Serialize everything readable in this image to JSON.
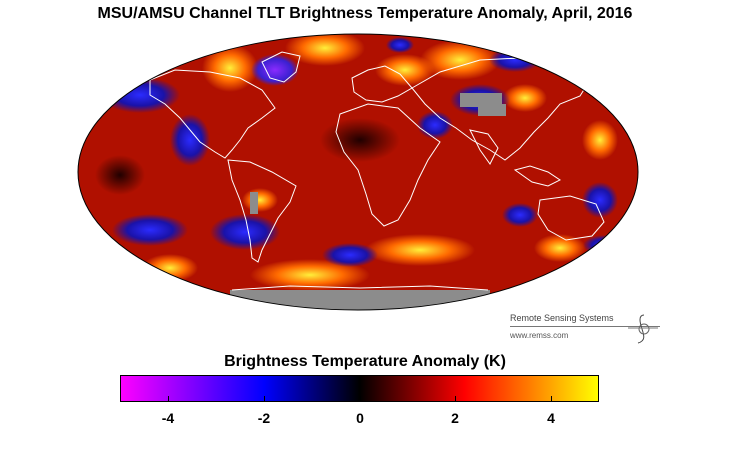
{
  "title": "MSU/AMSU Channel TLT Brightness Temperature Anomaly, April, 2016",
  "credit": {
    "org": "Remote Sensing Systems",
    "url": "www.remss.com",
    "logo_icon": "rss-logo-icon"
  },
  "legend": {
    "title": "Brightness Temperature Anomaly (K)",
    "units": "K",
    "min": -5,
    "max": 5,
    "ticks": [
      -4,
      -2,
      0,
      2,
      4
    ],
    "tick_labels": [
      "-4",
      "-2",
      "0",
      "2",
      "4"
    ],
    "colors": {
      "low": "#ff00ff",
      "mid_low": "#0000ff",
      "zero": "#000000",
      "mid_high": "#ff0000",
      "high": "#ffff00"
    }
  },
  "map": {
    "projection": "Mollweide",
    "coastline_color": "#ffffff",
    "missing_data_color": "#8c8c8c",
    "background_anomaly_color": "#b01000"
  }
}
